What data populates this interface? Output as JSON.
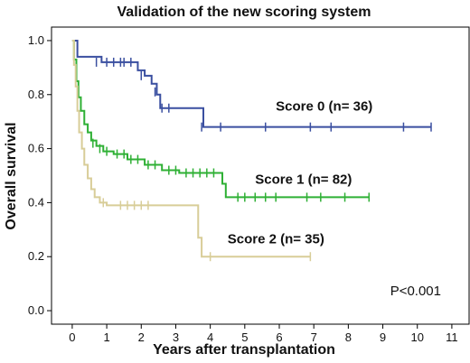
{
  "chart_data": {
    "type": "line",
    "title": "Validation of the new scoring system",
    "xlabel": "Years after transplantation",
    "ylabel": "Overall survival",
    "xlim": [
      -0.6,
      11.5
    ],
    "ylim": [
      -0.05,
      1.05
    ],
    "xticks": [
      "0",
      "1",
      "2",
      "3",
      "4",
      "5",
      "6",
      "7",
      "8",
      "9",
      "10",
      "11"
    ],
    "yticks": [
      "0.0",
      "0.2",
      "0.4",
      "0.6",
      "0.8",
      "1.0"
    ],
    "p_value": "P<0.001",
    "grid": false,
    "series": [
      {
        "name": "Score 0 (n= 36)",
        "color": "#3a4fa0",
        "steps": [
          [
            0,
            1.0
          ],
          [
            0.15,
            0.94
          ],
          [
            0.85,
            0.92
          ],
          [
            1.9,
            0.89
          ],
          [
            2.1,
            0.87
          ],
          [
            2.3,
            0.84
          ],
          [
            2.45,
            0.8
          ],
          [
            2.55,
            0.75
          ],
          [
            3.8,
            0.68
          ],
          [
            10.4,
            0.68
          ]
        ],
        "censors": [
          [
            0.7,
            0.92
          ],
          [
            1.0,
            0.92
          ],
          [
            1.2,
            0.92
          ],
          [
            1.4,
            0.92
          ],
          [
            1.5,
            0.92
          ],
          [
            1.7,
            0.92
          ],
          [
            2.0,
            0.87
          ],
          [
            2.4,
            0.81
          ],
          [
            2.6,
            0.75
          ],
          [
            2.8,
            0.75
          ],
          [
            3.75,
            0.68
          ],
          [
            4.3,
            0.68
          ],
          [
            5.6,
            0.68
          ],
          [
            6.9,
            0.68
          ],
          [
            7.5,
            0.68
          ],
          [
            9.6,
            0.68
          ],
          [
            10.4,
            0.68
          ]
        ],
        "label_anchor": [
          5.9,
          0.74
        ]
      },
      {
        "name": "Score 1 (n= 82)",
        "color": "#2fb035",
        "steps": [
          [
            0,
            1.0
          ],
          [
            0.05,
            0.93
          ],
          [
            0.12,
            0.85
          ],
          [
            0.18,
            0.79
          ],
          [
            0.25,
            0.74
          ],
          [
            0.35,
            0.69
          ],
          [
            0.45,
            0.66
          ],
          [
            0.55,
            0.63
          ],
          [
            0.7,
            0.61
          ],
          [
            0.9,
            0.59
          ],
          [
            1.2,
            0.58
          ],
          [
            1.6,
            0.56
          ],
          [
            2.1,
            0.54
          ],
          [
            2.6,
            0.52
          ],
          [
            3.1,
            0.51
          ],
          [
            4.35,
            0.47
          ],
          [
            4.45,
            0.42
          ],
          [
            8.6,
            0.42
          ]
        ],
        "censors": [
          [
            0.6,
            0.62
          ],
          [
            0.8,
            0.6
          ],
          [
            1.0,
            0.59
          ],
          [
            1.3,
            0.58
          ],
          [
            1.5,
            0.58
          ],
          [
            1.7,
            0.56
          ],
          [
            1.9,
            0.56
          ],
          [
            2.2,
            0.54
          ],
          [
            2.4,
            0.54
          ],
          [
            2.8,
            0.52
          ],
          [
            3.0,
            0.52
          ],
          [
            3.3,
            0.51
          ],
          [
            3.5,
            0.51
          ],
          [
            3.7,
            0.51
          ],
          [
            3.9,
            0.51
          ],
          [
            4.1,
            0.51
          ],
          [
            4.8,
            0.42
          ],
          [
            5.0,
            0.42
          ],
          [
            5.3,
            0.42
          ],
          [
            5.6,
            0.42
          ],
          [
            5.9,
            0.42
          ],
          [
            6.8,
            0.42
          ],
          [
            7.2,
            0.42
          ],
          [
            7.9,
            0.42
          ],
          [
            8.6,
            0.42
          ]
        ],
        "label_anchor": [
          5.3,
          0.47
        ]
      },
      {
        "name": "Score 2 (n= 35)",
        "color": "#d8cd98",
        "steps": [
          [
            0,
            1.0
          ],
          [
            0.05,
            0.91
          ],
          [
            0.1,
            0.83
          ],
          [
            0.15,
            0.74
          ],
          [
            0.2,
            0.66
          ],
          [
            0.28,
            0.6
          ],
          [
            0.35,
            0.54
          ],
          [
            0.45,
            0.49
          ],
          [
            0.55,
            0.45
          ],
          [
            0.65,
            0.42
          ],
          [
            0.8,
            0.4
          ],
          [
            1.0,
            0.39
          ],
          [
            3.65,
            0.27
          ],
          [
            3.75,
            0.2
          ],
          [
            6.9,
            0.2
          ]
        ],
        "censors": [
          [
            0.9,
            0.4
          ],
          [
            1.4,
            0.39
          ],
          [
            1.6,
            0.39
          ],
          [
            1.8,
            0.39
          ],
          [
            2.0,
            0.39
          ],
          [
            2.2,
            0.39
          ],
          [
            4.0,
            0.2
          ],
          [
            6.9,
            0.2
          ]
        ],
        "label_anchor": [
          4.5,
          0.25
        ]
      }
    ]
  }
}
